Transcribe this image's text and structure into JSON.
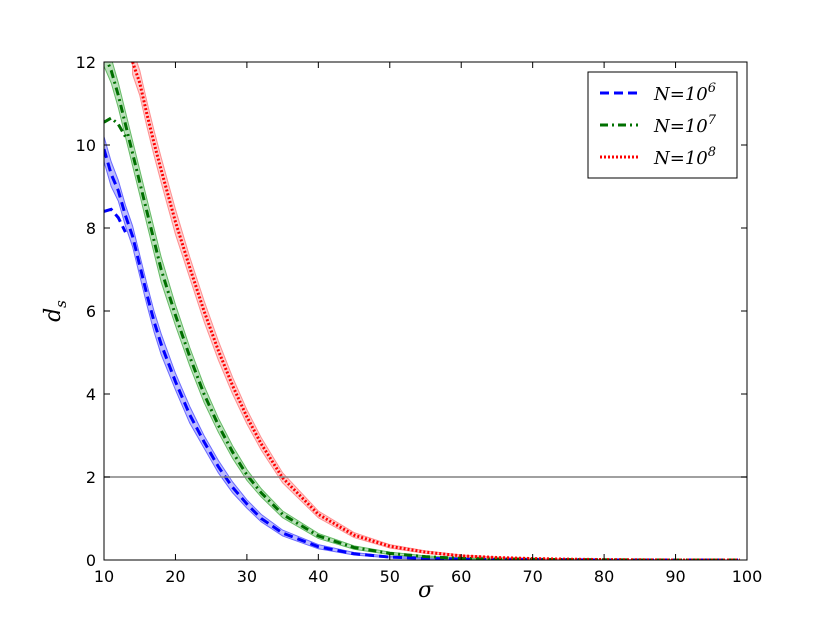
{
  "chart_data": {
    "type": "line",
    "xlabel": "σ",
    "ylabel": "d",
    "ylabel_sub": "s",
    "xlim": [
      10,
      100
    ],
    "ylim": [
      0,
      12
    ],
    "xticks": [
      10,
      20,
      30,
      40,
      50,
      60,
      70,
      80,
      90,
      100
    ],
    "yticks": [
      0,
      2,
      4,
      6,
      8,
      10,
      12
    ],
    "grid": false,
    "legend_position": "top-right",
    "reference_line": {
      "y": 2,
      "color": "#808080"
    },
    "series": [
      {
        "name": "N=10^6",
        "label_base": "N=10",
        "label_exp": "6",
        "color": "#0000ff",
        "band_color": "#6b6bff",
        "style": "dashed",
        "x": [
          10,
          11,
          12,
          13,
          14,
          15,
          16,
          17,
          18,
          20,
          22,
          24,
          26,
          28,
          30,
          32,
          35,
          40,
          45,
          50,
          55,
          60,
          65,
          70,
          75,
          80,
          85,
          90,
          95,
          99
        ],
        "y": [
          9.9,
          9.3,
          8.9,
          8.3,
          7.8,
          7.1,
          6.4,
          5.75,
          5.2,
          4.3,
          3.5,
          2.85,
          2.25,
          1.75,
          1.35,
          1.0,
          0.65,
          0.32,
          0.15,
          0.07,
          0.04,
          0.02,
          0.01,
          0.01,
          0.005,
          0.0,
          0.0,
          0.0,
          0.0,
          0.0
        ],
        "upper": [
          10.2,
          9.6,
          9.15,
          8.55,
          8.05,
          7.35,
          6.65,
          6.0,
          5.45,
          4.5,
          3.7,
          3.0,
          2.4,
          1.88,
          1.45,
          1.1,
          0.72,
          0.37,
          0.18,
          0.09,
          0.05,
          0.03,
          0.02,
          0.015,
          0.01,
          0.005,
          0.005,
          0.0,
          0.0,
          0.0
        ],
        "lower": [
          9.6,
          9.0,
          8.65,
          8.05,
          7.55,
          6.85,
          6.15,
          5.5,
          4.95,
          4.1,
          3.3,
          2.7,
          2.1,
          1.62,
          1.25,
          0.92,
          0.58,
          0.27,
          0.12,
          0.05,
          0.025,
          0.01,
          0.005,
          0.0,
          0.0,
          0.0,
          0.0,
          0.0,
          0.0,
          0.0
        ],
        "alt_x": [
          10,
          11,
          12,
          13
        ],
        "alt_y": [
          8.4,
          8.45,
          8.25,
          7.9
        ]
      },
      {
        "name": "N=10^7",
        "label_base": "N=10",
        "label_exp": "7",
        "color": "#007000",
        "band_color": "#66bb66",
        "style": "dashdot",
        "x": [
          10,
          11,
          12,
          13,
          14,
          15,
          16,
          17,
          18,
          20,
          22,
          24,
          26,
          28,
          30,
          32,
          35,
          40,
          45,
          50,
          55,
          60,
          65,
          70,
          75,
          80,
          85,
          90,
          95,
          99
        ],
        "y": [
          12.2,
          11.8,
          11.2,
          10.5,
          9.8,
          9.1,
          8.4,
          7.7,
          7.0,
          5.9,
          4.9,
          4.0,
          3.25,
          2.6,
          2.05,
          1.62,
          1.1,
          0.58,
          0.3,
          0.16,
          0.08,
          0.04,
          0.02,
          0.015,
          0.01,
          0.005,
          0.0,
          0.0,
          0.0,
          0.0
        ],
        "upper": [
          12.5,
          12.1,
          11.5,
          10.8,
          10.1,
          9.4,
          8.7,
          8.0,
          7.3,
          6.15,
          5.12,
          4.2,
          3.42,
          2.75,
          2.18,
          1.72,
          1.18,
          0.64,
          0.34,
          0.19,
          0.1,
          0.055,
          0.03,
          0.02,
          0.015,
          0.01,
          0.005,
          0.0,
          0.0,
          0.0
        ],
        "lower": [
          11.9,
          11.5,
          10.9,
          10.2,
          9.5,
          8.8,
          8.1,
          7.4,
          6.7,
          5.65,
          4.68,
          3.8,
          3.08,
          2.45,
          1.92,
          1.52,
          1.02,
          0.52,
          0.26,
          0.13,
          0.06,
          0.03,
          0.015,
          0.01,
          0.005,
          0.0,
          0.0,
          0.0,
          0.0,
          0.0
        ],
        "alt_x": [
          10,
          11,
          12,
          13
        ],
        "alt_y": [
          10.55,
          10.65,
          10.5,
          10.2
        ]
      },
      {
        "name": "N=10^8",
        "label_base": "N=10",
        "label_exp": "8",
        "color": "#ff0000",
        "band_color": "#ff9090",
        "style": "dotted",
        "x": [
          14,
          15,
          16,
          17,
          18,
          20,
          22,
          24,
          26,
          28,
          30,
          32,
          35,
          40,
          45,
          50,
          55,
          60,
          65,
          70,
          75,
          80,
          85,
          90,
          95,
          99
        ],
        "y": [
          12.0,
          11.5,
          10.75,
          10.05,
          9.4,
          8.15,
          7.05,
          6.0,
          5.05,
          4.2,
          3.45,
          2.8,
          1.98,
          1.1,
          0.6,
          0.33,
          0.19,
          0.1,
          0.06,
          0.035,
          0.02,
          0.01,
          0.005,
          0.0,
          0.0,
          0.0
        ],
        "upper": [
          12.3,
          11.8,
          11.05,
          10.35,
          9.7,
          8.45,
          7.3,
          6.25,
          5.28,
          4.4,
          3.62,
          2.95,
          2.1,
          1.18,
          0.66,
          0.37,
          0.22,
          0.12,
          0.07,
          0.045,
          0.03,
          0.015,
          0.01,
          0.005,
          0.0,
          0.0
        ],
        "lower": [
          11.7,
          11.2,
          10.45,
          9.75,
          9.1,
          7.85,
          6.8,
          5.75,
          4.82,
          4.0,
          3.28,
          2.65,
          1.86,
          1.02,
          0.54,
          0.29,
          0.16,
          0.08,
          0.05,
          0.025,
          0.01,
          0.005,
          0.0,
          0.0,
          0.0,
          0.0
        ]
      }
    ]
  }
}
